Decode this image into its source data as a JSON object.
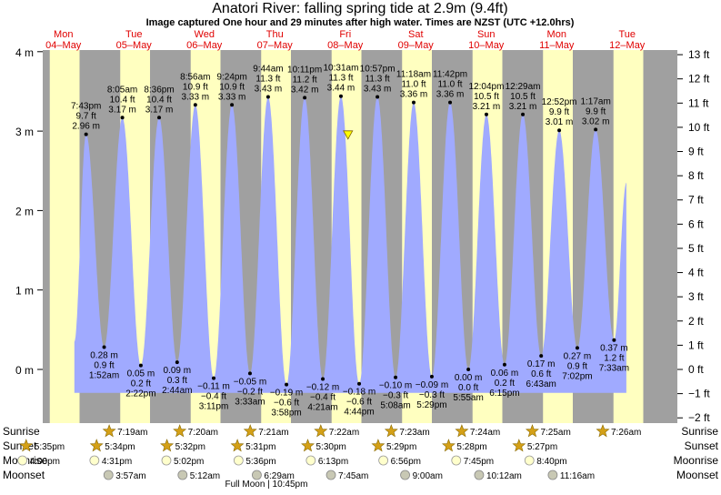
{
  "header": {
    "title": "Anatori River: falling  spring tide at 2.9m (9.4ft)",
    "subtitle": "Image captured One hour and 29 minutes after high water. Times are NZST (UTC +12.0hrs)"
  },
  "colors": {
    "day": "#ffffc0",
    "night": "#a0a0a0",
    "water": "#a0aaff",
    "day_label": "#e00000",
    "current_marker": "#ffff00",
    "sun_icon": "#d4a017",
    "moon_icon": "#ffffcc",
    "moonset_icon": "#c8c8b4"
  },
  "chart_data": {
    "type": "area",
    "y_unit_left": "m",
    "y_unit_right": "ft",
    "ylim_m": [
      -0.55,
      4.0
    ],
    "yticks_left": [
      "4 m",
      "3 m",
      "2 m",
      "1 m",
      "0 m"
    ],
    "yticks_left_values": [
      4,
      3,
      2,
      1,
      0
    ],
    "yticks_right": [
      "13 ft",
      "12 ft",
      "11 ft",
      "10 ft",
      "9 ft",
      "8 ft",
      "7 ft",
      "6 ft",
      "5 ft",
      "4 ft",
      "3 ft",
      "2 ft",
      "1 ft",
      "0 ft",
      "−1 ft",
      "−2 ft"
    ],
    "yticks_right_values_ft": [
      13,
      12,
      11,
      10,
      9,
      8,
      7,
      6,
      5,
      4,
      3,
      2,
      1,
      0,
      -1,
      -2
    ],
    "days": [
      {
        "name": "Mon",
        "date": "04–May",
        "day_index": 0
      },
      {
        "name": "Tue",
        "date": "05–May",
        "day_index": 1
      },
      {
        "name": "Wed",
        "date": "06–May",
        "day_index": 2
      },
      {
        "name": "Thu",
        "date": "07–May",
        "day_index": 3
      },
      {
        "name": "Fri",
        "date": "08–May",
        "day_index": 4
      },
      {
        "name": "Sat",
        "date": "09–May",
        "day_index": 5
      },
      {
        "name": "Sun",
        "date": "10–May",
        "day_index": 6
      },
      {
        "name": "Mon",
        "date": "11–May",
        "day_index": 7
      },
      {
        "name": "Tue",
        "date": "12–May",
        "day_index": 8
      }
    ],
    "tides": [
      {
        "type": "high",
        "day": 0,
        "time": "7:43 pm",
        "hours": 19.72,
        "m": 2.96,
        "m_label": "2.96 m",
        "ft_label": "9.7 ft"
      },
      {
        "type": "low",
        "day": 1,
        "time": "1:52 am",
        "hours": 1.87,
        "m": 0.28,
        "m_label": "0.28 m",
        "ft_label": "0.9 ft"
      },
      {
        "type": "high",
        "day": 1,
        "time": "8:05 am",
        "hours": 8.08,
        "m": 3.17,
        "m_label": "3.17 m",
        "ft_label": "10.4 ft"
      },
      {
        "type": "low",
        "day": 1,
        "time": "2:22 pm",
        "hours": 14.37,
        "m": 0.05,
        "m_label": "0.05 m",
        "ft_label": "0.2 ft"
      },
      {
        "type": "high",
        "day": 1,
        "time": "8:36 pm",
        "hours": 20.6,
        "m": 3.17,
        "m_label": "3.17 m",
        "ft_label": "10.4 ft"
      },
      {
        "type": "low",
        "day": 2,
        "time": "2:44 am",
        "hours": 2.73,
        "m": 0.09,
        "m_label": "0.09 m",
        "ft_label": "0.3 ft"
      },
      {
        "type": "high",
        "day": 2,
        "time": "8:56 am",
        "hours": 8.93,
        "m": 3.33,
        "m_label": "3.33 m",
        "ft_label": "10.9 ft"
      },
      {
        "type": "low",
        "day": 2,
        "time": "3:11 pm",
        "hours": 15.18,
        "m": -0.11,
        "m_label": "−0.11 m",
        "ft_label": "−0.4 ft"
      },
      {
        "type": "high",
        "day": 2,
        "time": "9:24 pm",
        "hours": 21.4,
        "m": 3.33,
        "m_label": "3.33 m",
        "ft_label": "10.9 ft"
      },
      {
        "type": "low",
        "day": 3,
        "time": "3:33 am",
        "hours": 3.55,
        "m": -0.05,
        "m_label": "−0.05 m",
        "ft_label": "−0.2 ft"
      },
      {
        "type": "high",
        "day": 3,
        "time": "9:44 am",
        "hours": 9.73,
        "m": 3.43,
        "m_label": "3.43 m",
        "ft_label": "11.3 ft"
      },
      {
        "type": "low",
        "day": 3,
        "time": "3:58 pm",
        "hours": 15.97,
        "m": -0.19,
        "m_label": "−0.19 m",
        "ft_label": "−0.6 ft"
      },
      {
        "type": "high",
        "day": 3,
        "time": "10:11 pm",
        "hours": 22.18,
        "m": 3.42,
        "m_label": "3.42 m",
        "ft_label": "11.2 ft"
      },
      {
        "type": "low",
        "day": 4,
        "time": "4:21 am",
        "hours": 4.35,
        "m": -0.12,
        "m_label": "−0.12 m",
        "ft_label": "−0.4 ft"
      },
      {
        "type": "high",
        "day": 4,
        "time": "10:31 am",
        "hours": 10.52,
        "m": 3.44,
        "m_label": "3.44 m",
        "ft_label": "11.3 ft"
      },
      {
        "type": "low",
        "day": 4,
        "time": "4:44 pm",
        "hours": 16.73,
        "m": -0.18,
        "m_label": "−0.18 m",
        "ft_label": "−0.6 ft"
      },
      {
        "type": "high",
        "day": 4,
        "time": "10:57 pm",
        "hours": 22.95,
        "m": 3.43,
        "m_label": "3.43 m",
        "ft_label": "11.3 ft"
      },
      {
        "type": "low",
        "day": 5,
        "time": "5:08 am",
        "hours": 5.13,
        "m": -0.1,
        "m_label": "−0.10 m",
        "ft_label": "−0.3 ft"
      },
      {
        "type": "high",
        "day": 5,
        "time": "11:18 am",
        "hours": 11.3,
        "m": 3.36,
        "m_label": "3.36 m",
        "ft_label": "11.0 ft"
      },
      {
        "type": "low",
        "day": 5,
        "time": "5:29 pm",
        "hours": 17.48,
        "m": -0.09,
        "m_label": "−0.09 m",
        "ft_label": "−0.3 ft"
      },
      {
        "type": "high",
        "day": 5,
        "time": "11:42 pm",
        "hours": 23.7,
        "m": 3.36,
        "m_label": "3.36 m",
        "ft_label": "11.0 ft"
      },
      {
        "type": "low",
        "day": 6,
        "time": "5:55 am",
        "hours": 5.92,
        "m": 0.0,
        "m_label": "0.00 m",
        "ft_label": "0.0 ft"
      },
      {
        "type": "high",
        "day": 6,
        "time": "12:04 pm",
        "hours": 12.07,
        "m": 3.21,
        "m_label": "3.21 m",
        "ft_label": "10.5 ft"
      },
      {
        "type": "low",
        "day": 6,
        "time": "6:15 pm",
        "hours": 18.25,
        "m": 0.06,
        "m_label": "0.06 m",
        "ft_label": "0.2 ft"
      },
      {
        "type": "high",
        "day": 7,
        "time": "12:29 am",
        "hours": 0.48,
        "m": 3.21,
        "m_label": "3.21 m",
        "ft_label": "10.5 ft"
      },
      {
        "type": "low",
        "day": 7,
        "time": "6:43 am",
        "hours": 6.72,
        "m": 0.17,
        "m_label": "0.17 m",
        "ft_label": "0.6 ft"
      },
      {
        "type": "high",
        "day": 7,
        "time": "12:52 pm",
        "hours": 12.87,
        "m": 3.01,
        "m_label": "3.01 m",
        "ft_label": "9.9 ft"
      },
      {
        "type": "low",
        "day": 7,
        "time": "7:02 pm",
        "hours": 19.03,
        "m": 0.27,
        "m_label": "0.27 m",
        "ft_label": "0.9 ft"
      },
      {
        "type": "high",
        "day": 8,
        "time": "1:17 am",
        "hours": 1.28,
        "m": 3.02,
        "m_label": "3.02 m",
        "ft_label": "9.9 ft"
      },
      {
        "type": "low",
        "day": 8,
        "time": "7:33 am",
        "hours": 7.55,
        "m": 0.37,
        "m_label": "0.37 m",
        "ft_label": "1.2 ft"
      }
    ],
    "current": {
      "day": 4,
      "time": "12:00 pm",
      "hours": 12.0,
      "m": 2.9,
      "description": "falling  spring tide at 2.9m (9.4ft)"
    },
    "night_hours": {
      "sunrise_approx": 7.35,
      "sunset_approx": 17.5
    },
    "rows": {
      "labels": [
        "Sunrise",
        "Sunset",
        "Moonrise",
        "Moonset"
      ],
      "sunrise": [
        {
          "day": 1,
          "hours": 7.32,
          "time": "7:19am"
        },
        {
          "day": 2,
          "hours": 7.33,
          "time": "7:20am"
        },
        {
          "day": 3,
          "hours": 7.35,
          "time": "7:21am"
        },
        {
          "day": 4,
          "hours": 7.37,
          "time": "7:22am"
        },
        {
          "day": 5,
          "hours": 7.38,
          "time": "7:23am"
        },
        {
          "day": 6,
          "hours": 7.4,
          "time": "7:24am"
        },
        {
          "day": 7,
          "hours": 7.42,
          "time": "7:25am"
        },
        {
          "day": 8,
          "hours": 7.43,
          "time": "7:26am"
        }
      ],
      "sunset": [
        {
          "day": 0,
          "hours": 17.58,
          "time": "5:35pm"
        },
        {
          "day": 1,
          "hours": 17.57,
          "time": "5:34pm"
        },
        {
          "day": 2,
          "hours": 17.53,
          "time": "5:32pm"
        },
        {
          "day": 3,
          "hours": 17.52,
          "time": "5:31pm"
        },
        {
          "day": 4,
          "hours": 17.5,
          "time": "5:30pm"
        },
        {
          "day": 5,
          "hours": 17.48,
          "time": "5:29pm"
        },
        {
          "day": 6,
          "hours": 17.47,
          "time": "5:28pm"
        },
        {
          "day": 7,
          "hours": 17.45,
          "time": "5:27pm"
        }
      ],
      "moonrise": [
        {
          "day": 0,
          "hours": 16.0,
          "time": "4:00pm"
        },
        {
          "day": 1,
          "hours": 16.52,
          "time": "4:31pm"
        },
        {
          "day": 2,
          "hours": 17.03,
          "time": "5:02pm"
        },
        {
          "day": 3,
          "hours": 17.6,
          "time": "5:36pm"
        },
        {
          "day": 4,
          "hours": 18.22,
          "time": "6:13pm"
        },
        {
          "day": 5,
          "hours": 18.93,
          "time": "6:56pm"
        },
        {
          "day": 6,
          "hours": 19.75,
          "time": "7:45pm"
        },
        {
          "day": 7,
          "hours": 20.67,
          "time": "8:40pm"
        }
      ],
      "moonset": [
        {
          "day": 1,
          "hours": 3.95,
          "time": "3:57am"
        },
        {
          "day": 2,
          "hours": 5.2,
          "time": "5:12am"
        },
        {
          "day": 3,
          "hours": 6.48,
          "time": "6:29am"
        },
        {
          "day": 4,
          "hours": 7.75,
          "time": "7:45am"
        },
        {
          "day": 5,
          "hours": 9.0,
          "time": "9:00am"
        },
        {
          "day": 6,
          "hours": 10.2,
          "time": "10:12am"
        },
        {
          "day": 7,
          "hours": 11.27,
          "time": "11:16am"
        }
      ]
    },
    "full_moon": {
      "label": "Full Moon | 10:45pm",
      "day": 3,
      "hours": 22.75
    }
  }
}
